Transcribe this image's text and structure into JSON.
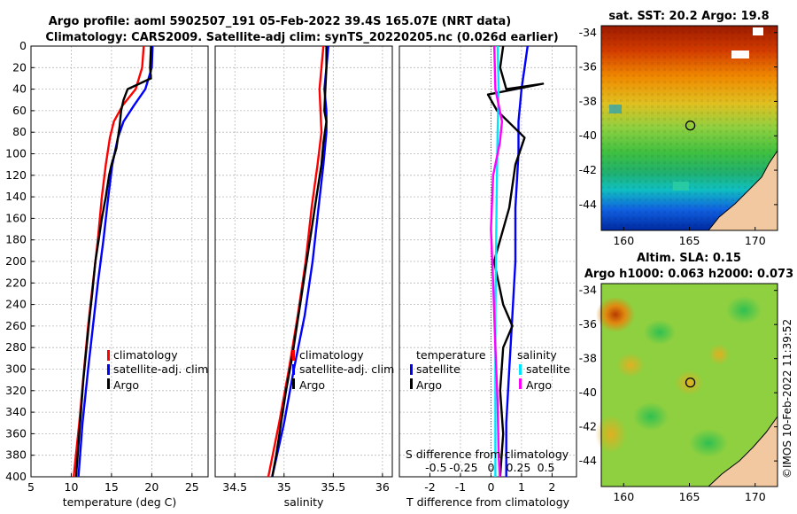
{
  "header": {
    "line1": "Argo profile: aoml 5902507_191 05-Feb-2022 39.4S 165.07E (NRT data)",
    "line2": "Climatology: CARS2009. Satellite-adj clim: synTS_20220205.nc (0.026d earlier)"
  },
  "copyright": "©IMOS 10-Feb-2022 11:39:52",
  "colors": {
    "climatology": "#ff0000",
    "satellite": "#0000ff",
    "argo": "#000000",
    "sat_salinity": "#00e5ff",
    "argo_salinity": "#ff00ff"
  },
  "chart_data": [
    {
      "type": "line",
      "name": "temperature",
      "xlabel": "temperature (deg C)",
      "xlim": [
        5,
        27
      ],
      "ylim": [
        400,
        0
      ],
      "xticks": [
        "5",
        "10",
        "15",
        "20",
        "25"
      ],
      "yticks": [
        "0",
        "20",
        "40",
        "60",
        "80",
        "100",
        "120",
        "140",
        "160",
        "180",
        "200",
        "220",
        "240",
        "260",
        "280",
        "300",
        "320",
        "340",
        "360",
        "380",
        "400"
      ],
      "legend": [
        "climatology",
        "satellite-adj. clim",
        "Argo"
      ],
      "series": [
        {
          "name": "climatology",
          "color": "#ff0000",
          "points": [
            [
              19.0,
              0
            ],
            [
              18.8,
              20
            ],
            [
              18.0,
              40
            ],
            [
              16.4,
              55
            ],
            [
              15.3,
              70
            ],
            [
              14.8,
              85
            ],
            [
              14.3,
              110
            ],
            [
              13.8,
              140
            ],
            [
              13.3,
              180
            ],
            [
              12.7,
              220
            ],
            [
              12.1,
              260
            ],
            [
              11.6,
              300
            ],
            [
              11.0,
              350
            ],
            [
              10.3,
              400
            ]
          ]
        },
        {
          "name": "satellite-adj. clim",
          "color": "#0000ff",
          "points": [
            [
              20.1,
              0
            ],
            [
              20.0,
              20
            ],
            [
              19.2,
              40
            ],
            [
              17.8,
              55
            ],
            [
              16.5,
              70
            ],
            [
              15.8,
              85
            ],
            [
              15.1,
              110
            ],
            [
              14.6,
              140
            ],
            [
              14.0,
              180
            ],
            [
              13.3,
              220
            ],
            [
              12.7,
              260
            ],
            [
              12.1,
              300
            ],
            [
              11.4,
              350
            ],
            [
              10.9,
              400
            ]
          ]
        },
        {
          "name": "Argo",
          "color": "#000000",
          "points": [
            [
              19.9,
              0
            ],
            [
              19.8,
              20
            ],
            [
              19.9,
              30
            ],
            [
              17.0,
              40
            ],
            [
              16.5,
              50
            ],
            [
              16.2,
              60
            ],
            [
              16.0,
              75
            ],
            [
              15.6,
              95
            ],
            [
              15.0,
              110
            ],
            [
              14.7,
              120
            ],
            [
              14.3,
              140
            ],
            [
              13.8,
              160
            ],
            [
              13.4,
              180
            ],
            [
              13.0,
              200
            ],
            [
              12.6,
              230
            ],
            [
              12.3,
              250
            ],
            [
              11.9,
              280
            ],
            [
              11.5,
              310
            ],
            [
              11.2,
              340
            ],
            [
              10.9,
              370
            ],
            [
              10.6,
              400
            ]
          ]
        }
      ]
    },
    {
      "type": "line",
      "name": "salinity",
      "xlabel": "salinity",
      "xlim": [
        34.3,
        36.1
      ],
      "ylim": [
        400,
        0
      ],
      "xticks": [
        "34.5",
        "35",
        "35.5",
        "36"
      ],
      "legend": [
        "climatology",
        "satellite-adj. clim",
        "Argo"
      ],
      "series": [
        {
          "name": "climatology",
          "color": "#ff0000",
          "points": [
            [
              35.4,
              0
            ],
            [
              35.38,
              20
            ],
            [
              35.36,
              40
            ],
            [
              35.37,
              60
            ],
            [
              35.38,
              80
            ],
            [
              35.34,
              110
            ],
            [
              35.28,
              150
            ],
            [
              35.22,
              200
            ],
            [
              35.14,
              250
            ],
            [
              35.05,
              300
            ],
            [
              34.95,
              350
            ],
            [
              34.84,
              400
            ]
          ]
        },
        {
          "name": "satellite-adj. clim",
          "color": "#0000ff",
          "points": [
            [
              35.45,
              0
            ],
            [
              35.43,
              20
            ],
            [
              35.41,
              40
            ],
            [
              35.43,
              60
            ],
            [
              35.43,
              80
            ],
            [
              35.4,
              110
            ],
            [
              35.35,
              150
            ],
            [
              35.29,
              200
            ],
            [
              35.21,
              250
            ],
            [
              35.1,
              300
            ],
            [
              35.0,
              350
            ],
            [
              34.88,
              400
            ]
          ]
        },
        {
          "name": "Argo",
          "color": "#000000",
          "points": [
            [
              35.43,
              0
            ],
            [
              35.43,
              20
            ],
            [
              35.42,
              40
            ],
            [
              35.41,
              60
            ],
            [
              35.43,
              70
            ],
            [
              35.4,
              90
            ],
            [
              35.38,
              110
            ],
            [
              35.33,
              140
            ],
            [
              35.28,
              170
            ],
            [
              35.23,
              200
            ],
            [
              35.18,
              230
            ],
            [
              35.13,
              260
            ],
            [
              35.08,
              290
            ],
            [
              35.02,
              320
            ],
            [
              34.97,
              350
            ],
            [
              34.92,
              380
            ],
            [
              34.88,
              400
            ]
          ]
        }
      ]
    },
    {
      "type": "line",
      "name": "difference from climatology",
      "xlabel": "T difference from climatology",
      "xlabel_top": "S difference from climatology",
      "xlim": [
        -3,
        2.8
      ],
      "ylim": [
        400,
        0
      ],
      "xticks": [
        "-2",
        "-1",
        "0",
        "1",
        "2"
      ],
      "xticks_top": [
        "-0.5",
        "-0.25",
        "0",
        "0.25",
        "0.5"
      ],
      "legend_temperature": {
        "title": "temperature",
        "items": [
          "satellite",
          "Argo"
        ]
      },
      "legend_salinity": {
        "title": "salinity",
        "items": [
          "satellite",
          "Argo"
        ]
      },
      "series": [
        {
          "name": "T satellite",
          "color": "#0000ff",
          "points": [
            [
              1.2,
              0
            ],
            [
              1.1,
              20
            ],
            [
              1.0,
              40
            ],
            [
              0.9,
              70
            ],
            [
              0.9,
              100
            ],
            [
              0.8,
              150
            ],
            [
              0.8,
              200
            ],
            [
              0.7,
              250
            ],
            [
              0.6,
              300
            ],
            [
              0.5,
              350
            ],
            [
              0.5,
              400
            ]
          ]
        },
        {
          "name": "T Argo",
          "color": "#000000",
          "points": [
            [
              0.4,
              0
            ],
            [
              0.3,
              20
            ],
            [
              0.5,
              40
            ],
            [
              1.7,
              35
            ],
            [
              -0.1,
              45
            ],
            [
              0.2,
              60
            ],
            [
              1.1,
              85
            ],
            [
              0.8,
              110
            ],
            [
              0.6,
              150
            ],
            [
              0.3,
              180
            ],
            [
              0.1,
              200
            ],
            [
              0.4,
              240
            ],
            [
              0.7,
              260
            ],
            [
              0.4,
              280
            ],
            [
              0.3,
              320
            ],
            [
              0.4,
              360
            ],
            [
              0.3,
              400
            ]
          ]
        },
        {
          "name": "S satellite",
          "color": "#00e5ff",
          "points": [
            [
              0.06,
              0
            ],
            [
              0.07,
              40
            ],
            [
              0.06,
              80
            ],
            [
              0.05,
              150
            ],
            [
              0.04,
              250
            ],
            [
              0.04,
              350
            ],
            [
              0.04,
              400
            ]
          ]
        },
        {
          "name": "S Argo",
          "color": "#ff00ff",
          "points": [
            [
              0.03,
              0
            ],
            [
              0.04,
              40
            ],
            [
              0.1,
              70
            ],
            [
              0.08,
              90
            ],
            [
              0.02,
              120
            ],
            [
              0.0,
              170
            ],
            [
              0.02,
              220
            ],
            [
              0.04,
              280
            ],
            [
              0.06,
              330
            ],
            [
              0.07,
              380
            ],
            [
              0.08,
              400
            ]
          ]
        }
      ]
    }
  ],
  "map_sst": {
    "title": "sat. SST: 20.2 Argo: 19.8",
    "yticks": [
      "-34",
      "-36",
      "-38",
      "-40",
      "-42",
      "-44"
    ],
    "xticks": [
      "160",
      "165",
      "170"
    ],
    "argo_lon": 165.07,
    "argo_lat": -39.4
  },
  "map_sla": {
    "title1": "Altim. SLA: 0.15",
    "title2": "Argo h1000: 0.063 h2000: 0.073",
    "yticks": [
      "-34",
      "-36",
      "-38",
      "-40",
      "-42",
      "-44"
    ],
    "xticks": [
      "160",
      "165",
      "170"
    ],
    "argo_lon": 165.07,
    "argo_lat": -39.4
  }
}
